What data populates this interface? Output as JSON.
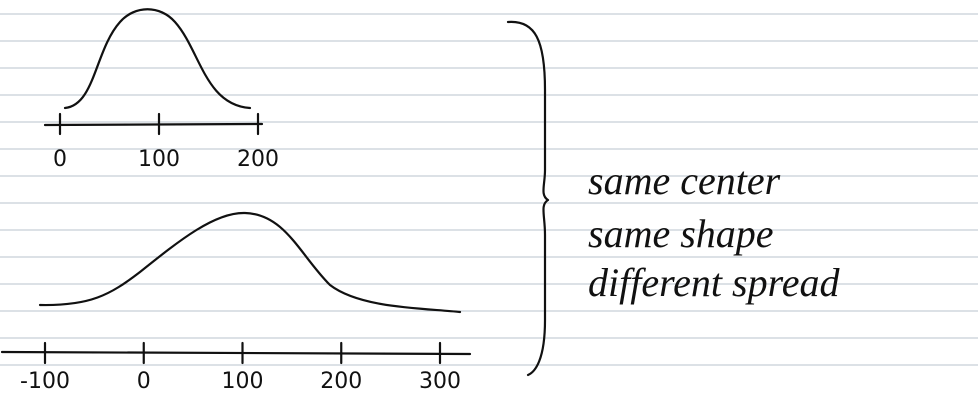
{
  "curves": [
    {
      "ticks": [
        "0",
        "100",
        "200"
      ]
    },
    {
      "ticks": [
        "-100",
        "0",
        "100",
        "200",
        "300"
      ]
    }
  ],
  "notes": [
    "same center",
    "same shape",
    "different spread"
  ]
}
